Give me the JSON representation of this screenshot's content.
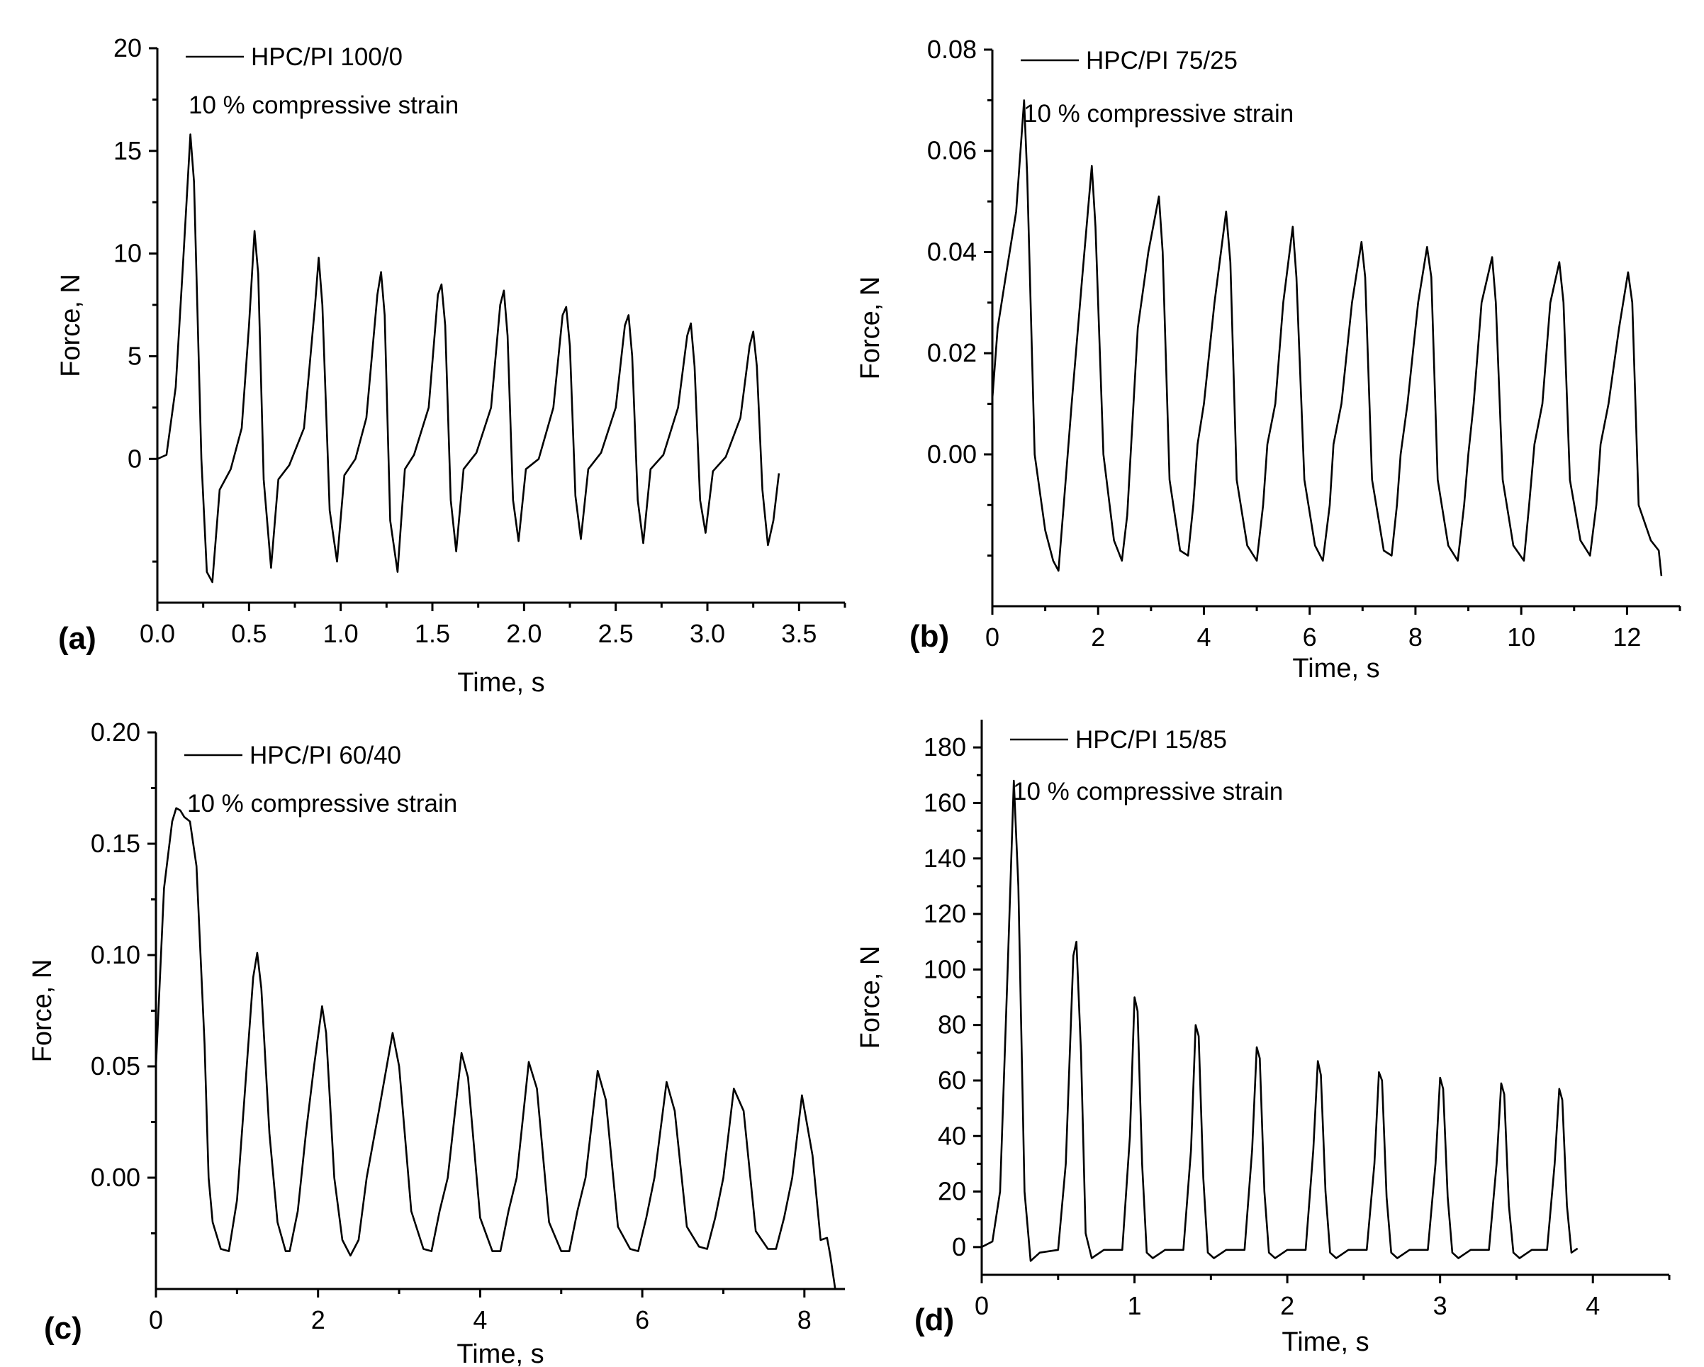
{
  "figure": {
    "xlabel": "Time, s",
    "ylabel": "Force, N"
  },
  "chart_data": [
    {
      "panel_label": "(a)",
      "type": "line",
      "title": "",
      "xlabel": "Time, s",
      "ylabel": "Force, N",
      "legend": "HPC/PI 100/0",
      "annotation": "10 % compressive strain",
      "xlim": [
        0,
        3.75
      ],
      "ylim": [
        -7,
        20
      ],
      "xticks": [
        0.0,
        0.5,
        1.0,
        1.5,
        2.0,
        2.5,
        3.0,
        3.5
      ],
      "xticklabels": [
        "0.0",
        "0.5",
        "1.0",
        "1.5",
        "2.0",
        "2.5",
        "3.0",
        "3.5"
      ],
      "yticks": [
        0,
        5,
        10,
        15,
        20
      ],
      "yticklabels": [
        "0",
        "5",
        "10",
        "15",
        "20"
      ],
      "yminor": [
        -5,
        2.5,
        7.5,
        12.5,
        17.5
      ],
      "series": [
        {
          "name": "HPC/PI 100/0",
          "x": [
            0.0,
            0.05,
            0.1,
            0.14,
            0.18,
            0.2,
            0.24,
            0.27,
            0.3,
            0.34,
            0.4,
            0.46,
            0.5,
            0.53,
            0.55,
            0.58,
            0.62,
            0.66,
            0.72,
            0.8,
            0.86,
            0.88,
            0.9,
            0.94,
            0.98,
            1.02,
            1.08,
            1.14,
            1.2,
            1.22,
            1.24,
            1.27,
            1.31,
            1.35,
            1.4,
            1.48,
            1.53,
            1.55,
            1.57,
            1.6,
            1.63,
            1.67,
            1.74,
            1.82,
            1.87,
            1.89,
            1.91,
            1.94,
            1.97,
            2.01,
            2.08,
            2.16,
            2.21,
            2.23,
            2.25,
            2.28,
            2.31,
            2.35,
            2.42,
            2.5,
            2.55,
            2.57,
            2.59,
            2.62,
            2.65,
            2.69,
            2.76,
            2.84,
            2.89,
            2.91,
            2.93,
            2.96,
            2.99,
            3.03,
            3.1,
            3.18,
            3.23,
            3.25,
            3.27,
            3.3,
            3.33,
            3.36,
            3.39
          ],
          "y": [
            0.0,
            0.2,
            3.5,
            9.5,
            15.8,
            13.5,
            0.0,
            -5.5,
            -6.0,
            -1.5,
            -0.5,
            1.5,
            6.5,
            11.1,
            9.0,
            -1.0,
            -5.3,
            -1.0,
            -0.3,
            1.5,
            7.5,
            9.8,
            7.5,
            -2.5,
            -5.0,
            -0.8,
            0.0,
            2.0,
            8.0,
            9.1,
            7.0,
            -3.0,
            -5.5,
            -0.5,
            0.2,
            2.5,
            8.0,
            8.5,
            6.5,
            -2.0,
            -4.5,
            -0.5,
            0.3,
            2.5,
            7.5,
            8.2,
            6.0,
            -2.0,
            -4.0,
            -0.5,
            0.0,
            2.5,
            7.0,
            7.4,
            5.5,
            -1.8,
            -3.9,
            -0.5,
            0.3,
            2.5,
            6.5,
            7.0,
            5.0,
            -2.0,
            -4.1,
            -0.5,
            0.2,
            2.5,
            6.0,
            6.6,
            4.5,
            -2.0,
            -3.6,
            -0.6,
            0.1,
            2.0,
            5.5,
            6.2,
            4.5,
            -1.5,
            -4.2,
            -3.0,
            -0.7
          ]
        }
      ]
    },
    {
      "panel_label": "(b)",
      "type": "line",
      "title": "",
      "xlabel": "Time, s",
      "ylabel": "Force, N",
      "legend": "HPC/PI 75/25",
      "annotation": "10 % compressive strain",
      "xlim": [
        0,
        13
      ],
      "ylim": [
        -0.03,
        0.08
      ],
      "xticks": [
        0,
        2,
        4,
        6,
        8,
        10,
        12
      ],
      "xticklabels": [
        "0",
        "2",
        "4",
        "6",
        "8",
        "10",
        "12"
      ],
      "yticks": [
        0.0,
        0.02,
        0.04,
        0.06,
        0.08
      ],
      "yticklabels": [
        "0.00",
        "0.02",
        "0.04",
        "0.06",
        "0.08"
      ],
      "yminor": [
        -0.02,
        -0.01,
        0.01,
        0.03,
        0.05,
        0.07
      ],
      "series": [
        {
          "name": "HPC/PI 75/25",
          "x": [
            0.0,
            0.1,
            0.25,
            0.45,
            0.6,
            0.66,
            0.8,
            1.0,
            1.15,
            1.25,
            1.35,
            1.5,
            1.7,
            1.88,
            1.95,
            2.1,
            2.3,
            2.45,
            2.55,
            2.62,
            2.75,
            2.95,
            3.15,
            3.22,
            3.35,
            3.55,
            3.7,
            3.8,
            3.88,
            4.0,
            4.2,
            4.42,
            4.5,
            4.62,
            4.82,
            5.0,
            5.12,
            5.2,
            5.35,
            5.5,
            5.68,
            5.75,
            5.9,
            6.1,
            6.25,
            6.38,
            6.45,
            6.6,
            6.8,
            6.98,
            7.05,
            7.18,
            7.4,
            7.55,
            7.65,
            7.72,
            7.85,
            8.05,
            8.22,
            8.3,
            8.42,
            8.62,
            8.8,
            8.92,
            9.0,
            9.1,
            9.25,
            9.45,
            9.52,
            9.65,
            9.85,
            10.05,
            10.15,
            10.25,
            10.4,
            10.55,
            10.72,
            10.8,
            10.92,
            11.12,
            11.3,
            11.42,
            11.5,
            11.65,
            11.85,
            12.02,
            12.1,
            12.22,
            12.45,
            12.6,
            12.65
          ],
          "y": [
            0.011,
            0.025,
            0.035,
            0.048,
            0.07,
            0.055,
            0.0,
            -0.015,
            -0.021,
            -0.023,
            -0.01,
            0.01,
            0.035,
            0.057,
            0.045,
            0.0,
            -0.017,
            -0.021,
            -0.012,
            0.001,
            0.025,
            0.04,
            0.051,
            0.04,
            -0.005,
            -0.019,
            -0.02,
            -0.01,
            0.002,
            0.01,
            0.03,
            0.048,
            0.038,
            -0.005,
            -0.018,
            -0.021,
            -0.01,
            0.002,
            0.01,
            0.03,
            0.045,
            0.035,
            -0.005,
            -0.018,
            -0.021,
            -0.01,
            0.002,
            0.01,
            0.03,
            0.042,
            0.035,
            -0.005,
            -0.019,
            -0.02,
            -0.01,
            0.0,
            0.01,
            0.03,
            0.041,
            0.035,
            -0.005,
            -0.018,
            -0.021,
            -0.01,
            0.0,
            0.01,
            0.03,
            0.039,
            0.03,
            -0.005,
            -0.018,
            -0.021,
            -0.01,
            0.002,
            0.01,
            0.03,
            0.038,
            0.03,
            -0.005,
            -0.017,
            -0.02,
            -0.01,
            0.002,
            0.01,
            0.025,
            0.036,
            0.03,
            -0.01,
            -0.017,
            -0.019,
            -0.024
          ]
        }
      ]
    },
    {
      "panel_label": "(c)",
      "type": "line",
      "title": "",
      "xlabel": "Time, s",
      "ylabel": "Force, N",
      "legend": "HPC/PI 60/40",
      "annotation": "10 % compressive strain",
      "xlim": [
        0,
        8.5
      ],
      "ylim": [
        -0.05,
        0.2
      ],
      "xticks": [
        0,
        2,
        4,
        6,
        8
      ],
      "xticklabels": [
        "0",
        "2",
        "4",
        "6",
        "8"
      ],
      "yticks": [
        0.0,
        0.05,
        0.1,
        0.15,
        0.2
      ],
      "yticklabels": [
        "0.00",
        "0.05",
        "0.10",
        "0.15",
        "0.20"
      ],
      "yminor": [
        -0.025,
        0.025,
        0.075,
        0.125,
        0.175
      ],
      "series": [
        {
          "name": "HPC/PI 60/40",
          "x": [
            0.0,
            0.1,
            0.2,
            0.25,
            0.3,
            0.35,
            0.42,
            0.5,
            0.6,
            0.65,
            0.7,
            0.8,
            0.9,
            1.0,
            1.1,
            1.2,
            1.25,
            1.3,
            1.4,
            1.5,
            1.6,
            1.65,
            1.75,
            1.85,
            1.95,
            2.05,
            2.1,
            2.2,
            2.3,
            2.4,
            2.5,
            2.6,
            2.75,
            2.92,
            3.0,
            3.15,
            3.3,
            3.4,
            3.5,
            3.6,
            3.77,
            3.85,
            4.0,
            4.15,
            4.25,
            4.35,
            4.45,
            4.6,
            4.7,
            4.85,
            5.0,
            5.1,
            5.2,
            5.3,
            5.45,
            5.55,
            5.7,
            5.85,
            5.95,
            6.05,
            6.15,
            6.3,
            6.4,
            6.55,
            6.7,
            6.8,
            6.9,
            7.0,
            7.13,
            7.25,
            7.4,
            7.55,
            7.65,
            7.75,
            7.85,
            7.97,
            8.1,
            8.2,
            8.28,
            8.32,
            8.38
          ],
          "y": [
            0.05,
            0.13,
            0.16,
            0.166,
            0.165,
            0.162,
            0.16,
            0.14,
            0.06,
            0.0,
            -0.02,
            -0.032,
            -0.033,
            -0.01,
            0.04,
            0.09,
            0.101,
            0.085,
            0.02,
            -0.02,
            -0.033,
            -0.033,
            -0.015,
            0.02,
            0.05,
            0.077,
            0.065,
            0.0,
            -0.028,
            -0.035,
            -0.028,
            0.0,
            0.03,
            0.065,
            0.05,
            -0.015,
            -0.032,
            -0.033,
            -0.015,
            0.0,
            0.056,
            0.045,
            -0.018,
            -0.033,
            -0.033,
            -0.015,
            0.0,
            0.052,
            0.04,
            -0.02,
            -0.033,
            -0.033,
            -0.015,
            0.0,
            0.048,
            0.035,
            -0.022,
            -0.032,
            -0.033,
            -0.018,
            0.0,
            0.043,
            0.03,
            -0.022,
            -0.031,
            -0.032,
            -0.018,
            0.0,
            0.04,
            0.03,
            -0.024,
            -0.032,
            -0.032,
            -0.018,
            0.0,
            0.037,
            0.01,
            -0.028,
            -0.027,
            -0.035,
            -0.05
          ]
        }
      ]
    },
    {
      "panel_label": "(d)",
      "type": "line",
      "title": "",
      "xlabel": "Time, s",
      "ylabel": "Force, N",
      "legend": "HPC/PI 15/85",
      "annotation": "10 % compressive strain",
      "xlim": [
        0,
        4.5
      ],
      "ylim": [
        -10,
        190
      ],
      "xticks": [
        0,
        1,
        2,
        3,
        4
      ],
      "xticklabels": [
        "0",
        "1",
        "2",
        "3",
        "4"
      ],
      "yticks": [
        0,
        20,
        40,
        60,
        80,
        100,
        120,
        140,
        160,
        180
      ],
      "yticklabels": [
        "0",
        "20",
        "40",
        "60",
        "80",
        "100",
        "120",
        "140",
        "160",
        "180"
      ],
      "yminor": [
        10,
        30,
        50,
        70,
        90,
        110,
        130,
        150,
        170
      ],
      "series": [
        {
          "name": "HPC/PI 15/85",
          "x": [
            0.0,
            0.07,
            0.12,
            0.17,
            0.21,
            0.24,
            0.28,
            0.32,
            0.38,
            0.5,
            0.55,
            0.6,
            0.62,
            0.65,
            0.68,
            0.72,
            0.8,
            0.92,
            0.97,
            1.0,
            1.02,
            1.05,
            1.08,
            1.12,
            1.2,
            1.32,
            1.37,
            1.4,
            1.42,
            1.45,
            1.48,
            1.52,
            1.6,
            1.72,
            1.77,
            1.8,
            1.82,
            1.85,
            1.88,
            1.92,
            2.0,
            2.12,
            2.17,
            2.2,
            2.22,
            2.25,
            2.28,
            2.32,
            2.4,
            2.52,
            2.57,
            2.6,
            2.62,
            2.65,
            2.68,
            2.72,
            2.8,
            2.92,
            2.97,
            3.0,
            3.02,
            3.05,
            3.08,
            3.12,
            3.2,
            3.32,
            3.37,
            3.4,
            3.42,
            3.45,
            3.48,
            3.52,
            3.6,
            3.7,
            3.75,
            3.78,
            3.8,
            3.83,
            3.86,
            3.9
          ],
          "y": [
            0.0,
            2.0,
            20.0,
            100.0,
            168.0,
            130.0,
            20.0,
            -5.0,
            -2.0,
            -1.0,
            30.0,
            105.0,
            110.0,
            70.0,
            5.0,
            -4.0,
            -1.0,
            -1.0,
            40.0,
            90.0,
            85.0,
            30.0,
            -2.0,
            -4.0,
            -1.0,
            -1.0,
            35.0,
            80.0,
            76.0,
            25.0,
            -2.0,
            -4.0,
            -1.0,
            -1.0,
            35.0,
            72.0,
            68.0,
            20.0,
            -2.0,
            -4.0,
            -1.0,
            -1.0,
            35.0,
            67.0,
            62.0,
            20.0,
            -2.0,
            -4.0,
            -1.0,
            -1.0,
            30.0,
            63.0,
            60.0,
            18.0,
            -2.0,
            -4.0,
            -1.0,
            -1.0,
            30.0,
            61.0,
            57.0,
            18.0,
            -2.0,
            -4.0,
            -1.0,
            -1.0,
            30.0,
            59.0,
            55.0,
            15.0,
            -2.0,
            -4.0,
            -1.0,
            -1.0,
            30.0,
            57.0,
            53.0,
            15.0,
            -2.0,
            -0.5
          ]
        }
      ]
    }
  ]
}
